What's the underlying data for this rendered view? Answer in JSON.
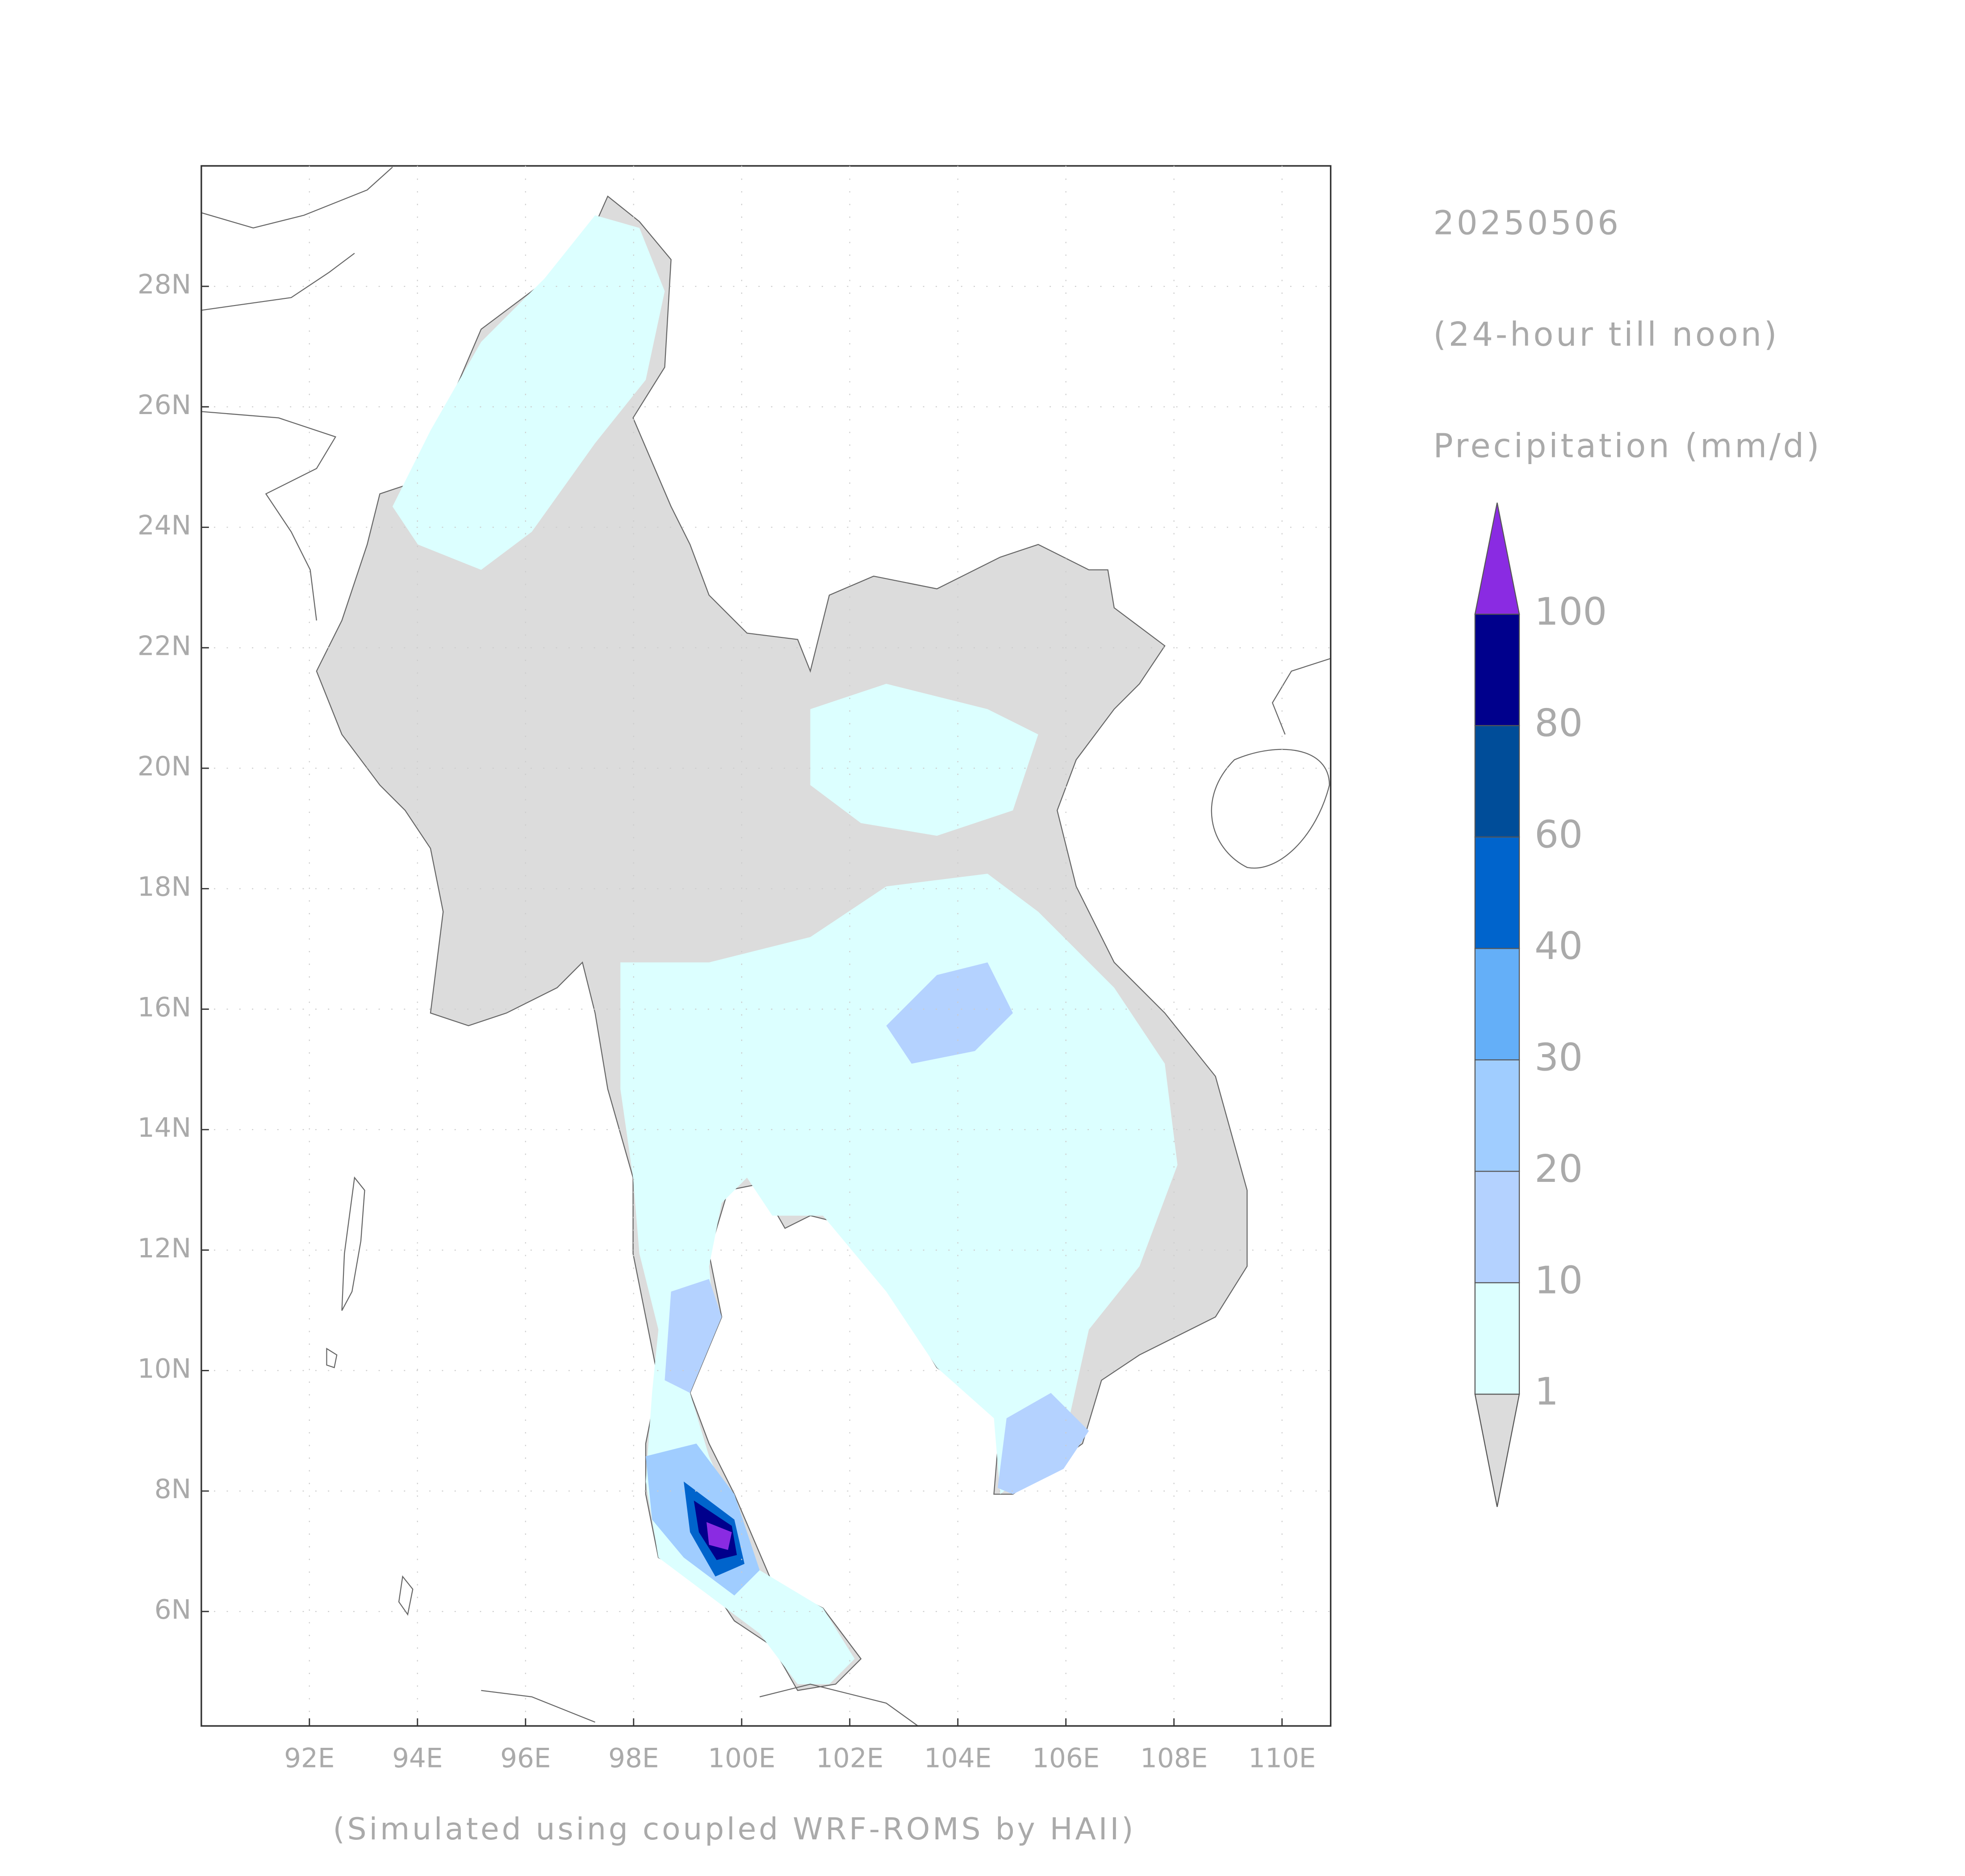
{
  "map": {
    "header": [
      "20250506",
      "(24-hour till noon)",
      "Precipitation (mm/d)"
    ],
    "footer": "(Simulated using coupled WRF-ROMS by HAII)",
    "lonlim": [
      90,
      110.9
    ],
    "latlim": [
      4.1,
      30
    ],
    "lonticks": [
      {
        "value": 92,
        "label": "92E"
      },
      {
        "value": 94,
        "label": "94E"
      },
      {
        "value": 96,
        "label": "96E"
      },
      {
        "value": 98,
        "label": "98E"
      },
      {
        "value": 100,
        "label": "100E"
      },
      {
        "value": 102,
        "label": "102E"
      },
      {
        "value": 104,
        "label": "104E"
      },
      {
        "value": 106,
        "label": "106E"
      },
      {
        "value": 108,
        "label": "108E"
      },
      {
        "value": 110,
        "label": "110E"
      }
    ],
    "latticks": [
      {
        "value": 6,
        "label": "6N"
      },
      {
        "value": 8,
        "label": "8N"
      },
      {
        "value": 10,
        "label": "10N"
      },
      {
        "value": 12,
        "label": "12N"
      },
      {
        "value": 14,
        "label": "14N"
      },
      {
        "value": 16,
        "label": "16N"
      },
      {
        "value": 18,
        "label": "18N"
      },
      {
        "value": 20,
        "label": "20N"
      },
      {
        "value": 22,
        "label": "22N"
      },
      {
        "value": 24,
        "label": "24N"
      },
      {
        "value": 26,
        "label": "26N"
      },
      {
        "value": 28,
        "label": "28N"
      }
    ],
    "colorbar": {
      "levels": [
        1,
        10,
        20,
        30,
        40,
        60,
        80,
        100
      ],
      "colors": [
        "#dcdcdc",
        "#dcffff",
        "#b4d2ff",
        "#a0cdff",
        "#64aff8",
        "#0064cc",
        "#004d99",
        "#00008c",
        "#8a2be2"
      ]
    }
  }
}
